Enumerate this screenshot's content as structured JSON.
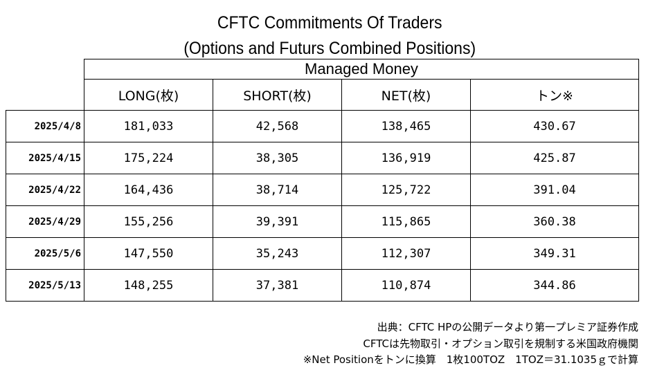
{
  "chart_data": {
    "type": "table",
    "title": "CFTC Commitments Of Traders",
    "subtitle": "(Options and Futurs Combined Positions)",
    "group_header": "Managed Money",
    "columns": [
      "LONG(枚)",
      "SHORT(枚)",
      "NET(枚)",
      "トン※"
    ],
    "rows": [
      {
        "date": "2025/4/8",
        "long": "181,033",
        "short": "42,568",
        "net": "138,465",
        "ton": "430.67"
      },
      {
        "date": "2025/4/15",
        "long": "175,224",
        "short": "38,305",
        "net": "136,919",
        "ton": "425.87"
      },
      {
        "date": "2025/4/22",
        "long": "164,436",
        "short": "38,714",
        "net": "125,722",
        "ton": "391.04"
      },
      {
        "date": "2025/4/29",
        "long": "155,256",
        "short": "39,391",
        "net": "115,865",
        "ton": "360.38"
      },
      {
        "date": "2025/5/6",
        "long": "147,550",
        "short": "35,243",
        "net": "112,307",
        "ton": "349.31"
      },
      {
        "date": "2025/5/13",
        "long": "148,255",
        "short": "37,381",
        "net": "110,874",
        "ton": "344.86"
      }
    ]
  },
  "notes": [
    "出典：CFTC HPの公開データより第一プレミア証券作成",
    "CFTCは先物取引・オプション取引を規制する米国政府機関",
    "※Net Positionをトンに換算　1枚100TOZ　1TOZ＝31.1035ｇで計算"
  ]
}
